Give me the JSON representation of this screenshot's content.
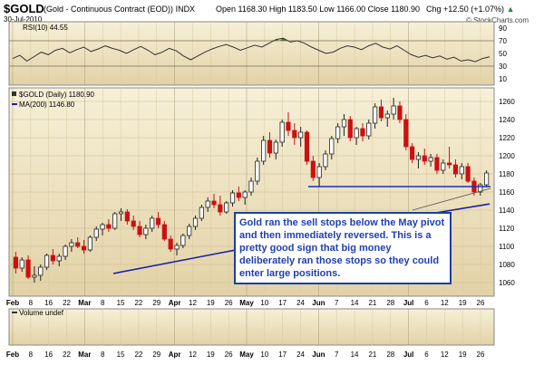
{
  "header": {
    "symbol": "$GOLD",
    "description": "(Gold - Continuous Contract (EOD))",
    "exchange": "INDX",
    "date": "30-Jul-2010",
    "ohlc": "Open 1168.30  High 1183.50  Low 1166.00  Close 1180.90",
    "change": "Chg +12.50 (+1.07%)",
    "change_arrow": "▲",
    "credit": "© StockCharts.com"
  },
  "colors": {
    "panel_bg_top": "#f7f0d8",
    "panel_bg_bottom": "#e0cfa2",
    "up_candle": "#ffffff",
    "down_candle": "#cc1010",
    "ma_line": "#1d1fa6",
    "support_line": "#1530c8",
    "trendline": "#555555",
    "rsi_line": "#333333",
    "rsi_overbought_fill": "#4a7a2a",
    "annotation_text": "#1f3fb0"
  },
  "rsi_panel": {
    "legend": "RSI(10) 44.55",
    "ticks": [
      "90",
      "70",
      "50",
      "30",
      "10"
    ]
  },
  "price_panel": {
    "legend_symbol": "$GOLD (Daily) 1180.90",
    "legend_ma": "MA(200) 1146.80",
    "ticks": [
      "1260",
      "1240",
      "1220",
      "1200",
      "1180",
      "1160",
      "1140",
      "1120",
      "1100",
      "1080",
      "1060"
    ]
  },
  "volume_panel": {
    "legend": "Volume undef"
  },
  "xaxis": {
    "labels": [
      "Feb",
      "8",
      "16",
      "22",
      "Mar",
      "8",
      "15",
      "22",
      "29",
      "Apr",
      "12",
      "19",
      "26",
      "May",
      "10",
      "17",
      "24",
      "Jun",
      "7",
      "14",
      "21",
      "28",
      "Jul",
      "6",
      "12",
      "19",
      "26"
    ]
  },
  "annotation": {
    "text": "Gold ran the sell stops below the May pivot and then immediately reversed. This is a pretty good sign that big money deliberately ran those stops so they could enter large positions."
  },
  "chart_data": {
    "type": "candlestick",
    "title": "$GOLD (Gold - Continuous Contract (EOD))",
    "ylim": [
      1045,
      1275
    ],
    "series": [
      {
        "name": "$GOLD (Daily)",
        "last": 1180.9
      },
      {
        "name": "MA(200)",
        "last": 1146.8,
        "values": [
          1070,
          1078,
          1086,
          1094,
          1102,
          1110,
          1118,
          1126,
          1133,
          1140,
          1146.8
        ]
      },
      {
        "name": "RSI(10)",
        "last": 44.55
      }
    ],
    "support_level": 1166,
    "candles": [
      {
        "o": 1088,
        "h": 1094,
        "l": 1070,
        "c": 1076
      },
      {
        "o": 1076,
        "h": 1088,
        "l": 1072,
        "c": 1085
      },
      {
        "o": 1085,
        "h": 1090,
        "l": 1064,
        "c": 1066
      },
      {
        "o": 1066,
        "h": 1078,
        "l": 1060,
        "c": 1068
      },
      {
        "o": 1068,
        "h": 1080,
        "l": 1062,
        "c": 1077
      },
      {
        "o": 1077,
        "h": 1092,
        "l": 1074,
        "c": 1090
      },
      {
        "o": 1090,
        "h": 1097,
        "l": 1080,
        "c": 1084
      },
      {
        "o": 1084,
        "h": 1092,
        "l": 1078,
        "c": 1089
      },
      {
        "o": 1089,
        "h": 1102,
        "l": 1085,
        "c": 1100
      },
      {
        "o": 1100,
        "h": 1108,
        "l": 1094,
        "c": 1104
      },
      {
        "o": 1104,
        "h": 1110,
        "l": 1098,
        "c": 1100
      },
      {
        "o": 1100,
        "h": 1107,
        "l": 1092,
        "c": 1096
      },
      {
        "o": 1096,
        "h": 1112,
        "l": 1094,
        "c": 1110
      },
      {
        "o": 1110,
        "h": 1122,
        "l": 1106,
        "c": 1119
      },
      {
        "o": 1119,
        "h": 1126,
        "l": 1112,
        "c": 1124
      },
      {
        "o": 1124,
        "h": 1130,
        "l": 1116,
        "c": 1120
      },
      {
        "o": 1120,
        "h": 1138,
        "l": 1118,
        "c": 1136
      },
      {
        "o": 1136,
        "h": 1142,
        "l": 1128,
        "c": 1138
      },
      {
        "o": 1138,
        "h": 1141,
        "l": 1124,
        "c": 1128
      },
      {
        "o": 1128,
        "h": 1134,
        "l": 1118,
        "c": 1122
      },
      {
        "o": 1122,
        "h": 1128,
        "l": 1110,
        "c": 1113
      },
      {
        "o": 1113,
        "h": 1124,
        "l": 1108,
        "c": 1120
      },
      {
        "o": 1120,
        "h": 1134,
        "l": 1116,
        "c": 1131
      },
      {
        "o": 1131,
        "h": 1138,
        "l": 1120,
        "c": 1124
      },
      {
        "o": 1124,
        "h": 1128,
        "l": 1106,
        "c": 1108
      },
      {
        "o": 1108,
        "h": 1112,
        "l": 1094,
        "c": 1097
      },
      {
        "o": 1097,
        "h": 1104,
        "l": 1090,
        "c": 1101
      },
      {
        "o": 1101,
        "h": 1114,
        "l": 1098,
        "c": 1112
      },
      {
        "o": 1112,
        "h": 1125,
        "l": 1108,
        "c": 1122
      },
      {
        "o": 1122,
        "h": 1134,
        "l": 1118,
        "c": 1131
      },
      {
        "o": 1131,
        "h": 1146,
        "l": 1128,
        "c": 1143
      },
      {
        "o": 1143,
        "h": 1154,
        "l": 1138,
        "c": 1150
      },
      {
        "o": 1150,
        "h": 1158,
        "l": 1142,
        "c": 1146
      },
      {
        "o": 1146,
        "h": 1156,
        "l": 1134,
        "c": 1138
      },
      {
        "o": 1138,
        "h": 1150,
        "l": 1136,
        "c": 1148
      },
      {
        "o": 1148,
        "h": 1162,
        "l": 1144,
        "c": 1159
      },
      {
        "o": 1159,
        "h": 1166,
        "l": 1150,
        "c": 1154
      },
      {
        "o": 1154,
        "h": 1162,
        "l": 1146,
        "c": 1160
      },
      {
        "o": 1160,
        "h": 1176,
        "l": 1156,
        "c": 1172
      },
      {
        "o": 1172,
        "h": 1198,
        "l": 1168,
        "c": 1194
      },
      {
        "o": 1194,
        "h": 1222,
        "l": 1190,
        "c": 1217
      },
      {
        "o": 1217,
        "h": 1226,
        "l": 1198,
        "c": 1203
      },
      {
        "o": 1203,
        "h": 1218,
        "l": 1196,
        "c": 1215
      },
      {
        "o": 1215,
        "h": 1240,
        "l": 1210,
        "c": 1237
      },
      {
        "o": 1237,
        "h": 1248,
        "l": 1222,
        "c": 1228
      },
      {
        "o": 1228,
        "h": 1236,
        "l": 1212,
        "c": 1220
      },
      {
        "o": 1220,
        "h": 1232,
        "l": 1210,
        "c": 1226
      },
      {
        "o": 1226,
        "h": 1228,
        "l": 1190,
        "c": 1194
      },
      {
        "o": 1194,
        "h": 1200,
        "l": 1172,
        "c": 1176
      },
      {
        "o": 1176,
        "h": 1192,
        "l": 1166,
        "c": 1188
      },
      {
        "o": 1188,
        "h": 1206,
        "l": 1184,
        "c": 1202
      },
      {
        "o": 1202,
        "h": 1222,
        "l": 1196,
        "c": 1219
      },
      {
        "o": 1219,
        "h": 1236,
        "l": 1214,
        "c": 1232
      },
      {
        "o": 1232,
        "h": 1246,
        "l": 1222,
        "c": 1240
      },
      {
        "o": 1240,
        "h": 1244,
        "l": 1216,
        "c": 1220
      },
      {
        "o": 1220,
        "h": 1232,
        "l": 1212,
        "c": 1230
      },
      {
        "o": 1230,
        "h": 1236,
        "l": 1216,
        "c": 1222
      },
      {
        "o": 1222,
        "h": 1240,
        "l": 1218,
        "c": 1236
      },
      {
        "o": 1236,
        "h": 1258,
        "l": 1230,
        "c": 1254
      },
      {
        "o": 1254,
        "h": 1262,
        "l": 1238,
        "c": 1242
      },
      {
        "o": 1242,
        "h": 1250,
        "l": 1232,
        "c": 1246
      },
      {
        "o": 1246,
        "h": 1264,
        "l": 1240,
        "c": 1255
      },
      {
        "o": 1255,
        "h": 1260,
        "l": 1236,
        "c": 1240
      },
      {
        "o": 1240,
        "h": 1246,
        "l": 1206,
        "c": 1210
      },
      {
        "o": 1210,
        "h": 1214,
        "l": 1192,
        "c": 1196
      },
      {
        "o": 1196,
        "h": 1204,
        "l": 1186,
        "c": 1200
      },
      {
        "o": 1200,
        "h": 1208,
        "l": 1190,
        "c": 1194
      },
      {
        "o": 1194,
        "h": 1202,
        "l": 1188,
        "c": 1198
      },
      {
        "o": 1198,
        "h": 1202,
        "l": 1180,
        "c": 1184
      },
      {
        "o": 1184,
        "h": 1196,
        "l": 1180,
        "c": 1192
      },
      {
        "o": 1192,
        "h": 1210,
        "l": 1186,
        "c": 1190
      },
      {
        "o": 1190,
        "h": 1196,
        "l": 1176,
        "c": 1180
      },
      {
        "o": 1180,
        "h": 1192,
        "l": 1174,
        "c": 1188
      },
      {
        "o": 1188,
        "h": 1192,
        "l": 1170,
        "c": 1172
      },
      {
        "o": 1172,
        "h": 1176,
        "l": 1156,
        "c": 1160
      },
      {
        "o": 1160,
        "h": 1170,
        "l": 1156,
        "c": 1168
      },
      {
        "o": 1168,
        "h": 1184,
        "l": 1166,
        "c": 1181
      }
    ],
    "rsi": [
      42,
      47,
      38,
      45,
      52,
      48,
      55,
      58,
      51,
      56,
      60,
      53,
      57,
      62,
      58,
      55,
      50,
      56,
      61,
      55,
      48,
      52,
      58,
      54,
      46,
      40,
      46,
      52,
      57,
      61,
      64,
      60,
      55,
      59,
      63,
      60,
      66,
      72,
      74,
      68,
      70,
      66,
      60,
      55,
      50,
      52,
      58,
      62,
      60,
      56,
      62,
      66,
      60,
      57,
      62,
      55,
      48,
      44,
      47,
      43,
      46,
      41,
      44,
      38,
      40,
      37,
      42,
      44.55
    ],
    "ticks_y": [
      1060,
      1080,
      1100,
      1120,
      1140,
      1160,
      1180,
      1200,
      1220,
      1240,
      1260
    ],
    "rsi_ticks": [
      10,
      30,
      50,
      70,
      90
    ]
  }
}
